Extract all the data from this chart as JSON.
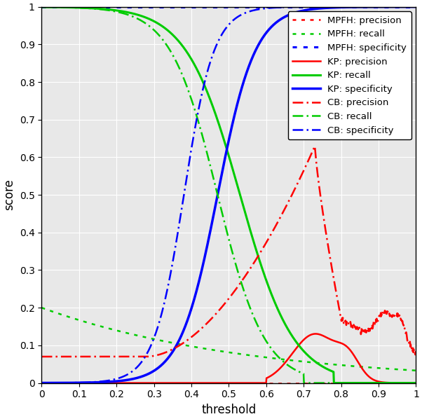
{
  "title": "",
  "xlabel": "threshold",
  "ylabel": "score",
  "xlim": [
    0,
    1
  ],
  "ylim": [
    0,
    1
  ],
  "xticks": [
    0,
    0.1,
    0.2,
    0.3,
    0.4,
    0.5,
    0.6,
    0.7,
    0.8,
    0.9,
    1.0
  ],
  "yticks": [
    0,
    0.1,
    0.2,
    0.3,
    0.4,
    0.5,
    0.6,
    0.7,
    0.8,
    0.9,
    1.0
  ],
  "legend_loc": "upper right",
  "figsize": [
    6.02,
    5.98
  ],
  "dpi": 100,
  "background_color": "#ffffff",
  "axes_bg": "#e8e8e8",
  "grid_color": "#ffffff",
  "line_specs": [
    {
      "label": "MPFH: precision",
      "color": "#ff0000",
      "linestyle": "dotted",
      "linewidth": 1.8
    },
    {
      "label": "MPFH: recall",
      "color": "#00cc00",
      "linestyle": "dotted",
      "linewidth": 1.8
    },
    {
      "label": "MPFH: specificity",
      "color": "#0000ff",
      "linestyle": "dotted",
      "linewidth": 2.2
    },
    {
      "label": "KP: precision",
      "color": "#ff0000",
      "linestyle": "solid",
      "linewidth": 1.8
    },
    {
      "label": "KP: recall",
      "color": "#00cc00",
      "linestyle": "solid",
      "linewidth": 2.2
    },
    {
      "label": "KP: specificity",
      "color": "#0000ff",
      "linestyle": "solid",
      "linewidth": 2.5
    },
    {
      "label": "CB: precision",
      "color": "#ff0000",
      "linestyle": "dashdot",
      "linewidth": 1.8
    },
    {
      "label": "CB: recall",
      "color": "#00cc00",
      "linestyle": "dashdot",
      "linewidth": 1.8
    },
    {
      "label": "CB: specificity",
      "color": "#0000ff",
      "linestyle": "dashdot",
      "linewidth": 1.8
    }
  ]
}
